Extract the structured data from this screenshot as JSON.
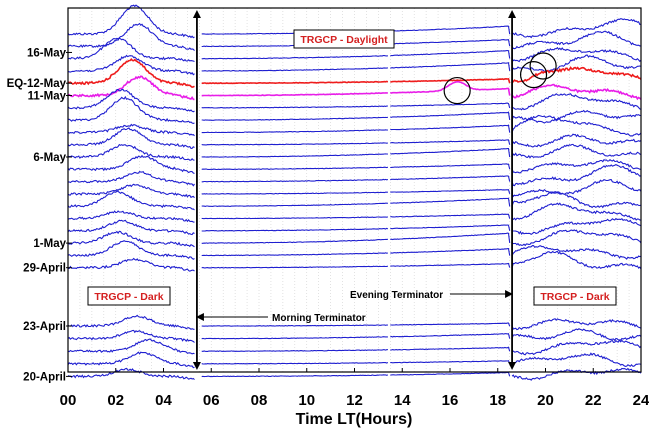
{
  "chart_data": {
    "type": "line",
    "xlabel": "Time LT(Hours)",
    "xlim": [
      0,
      24
    ],
    "x_ticks": [
      "00",
      "02",
      "04",
      "06",
      "08",
      "10",
      "12",
      "14",
      "16",
      "18",
      "20",
      "22",
      "24"
    ],
    "date_labels": [
      {
        "text": "16-May",
        "color": "#000000",
        "row": 1.5
      },
      {
        "text": "EQ-12-May",
        "color": "#ee1c1c",
        "row": 4
      },
      {
        "text": "11-May",
        "color": "#000000",
        "row": 5
      },
      {
        "text": "6-May",
        "color": "#000000",
        "row": 10
      },
      {
        "text": "1-May",
        "color": "#000000",
        "row": 17
      },
      {
        "text": "29-April",
        "color": "#000000",
        "row": 19
      }
    ],
    "date_labels_lower": [
      {
        "text": "23-April",
        "color": "#000000",
        "row": 0
      },
      {
        "text": "20-April",
        "color": "#000000",
        "row": 4
      }
    ],
    "terminators": [
      {
        "name": "morning",
        "x": 5.4,
        "label": "Morning Terminator"
      },
      {
        "name": "evening",
        "x": 18.6,
        "label": "Evening Terminator"
      }
    ],
    "region_labels": {
      "daylight": "TRGCP - Daylight",
      "dark_left": "TRGCP - Dark",
      "dark_right": "TRGCP - Dark"
    },
    "upper_series_count": 20,
    "lower_series_count": 5,
    "highlighted_series": [
      {
        "name": "EQ-12-May",
        "row": 4,
        "color": "#ee1c1c"
      },
      {
        "name": "11-May",
        "row": 5,
        "color": "#e81ee8"
      }
    ],
    "series_color": "#1f1fd0",
    "anomaly_markers": [
      {
        "x": 16.3,
        "row": 4.6
      },
      {
        "x": 19.5,
        "row": 3.3
      },
      {
        "x": 19.9,
        "row": 2.6
      }
    ],
    "grid": "vertical-dotted"
  }
}
